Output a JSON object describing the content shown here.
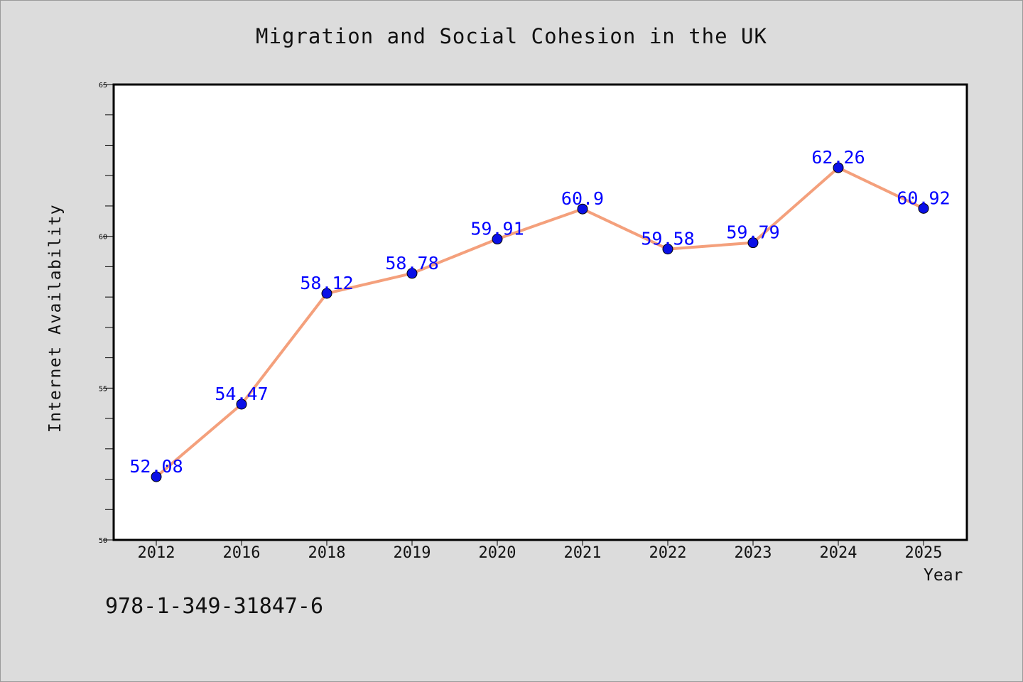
{
  "chart_data": {
    "type": "line",
    "title": "Migration and Social Cohesion in the UK",
    "xlabel": "Year",
    "ylabel": "Internet Availability",
    "categories": [
      "2012",
      "2016",
      "2018",
      "2019",
      "2020",
      "2021",
      "2022",
      "2023",
      "2024",
      "2025"
    ],
    "series": [
      {
        "values": [
          52.08,
          54.47,
          58.12,
          58.78,
          59.91,
          60.9,
          59.58,
          59.79,
          62.26,
          60.92
        ],
        "labels": [
          "52.08",
          "54.47",
          "58.12",
          "58.78",
          "59.91",
          "60.9",
          "59.58",
          "59.79",
          "62.26",
          "60.92"
        ],
        "line_color": "#f4a07c",
        "marker_color": "#0a10e6",
        "label_color": "#0000ff"
      }
    ],
    "ylim": [
      50,
      65
    ],
    "yticks": [
      "50",
      "55",
      "60",
      "65"
    ],
    "grid": false,
    "legend": "none"
  },
  "footer": {
    "isbn": "978-1-349-31847-6"
  },
  "colors": {
    "page_background": "#dcdcdc",
    "plot_background": "#ffffff"
  }
}
